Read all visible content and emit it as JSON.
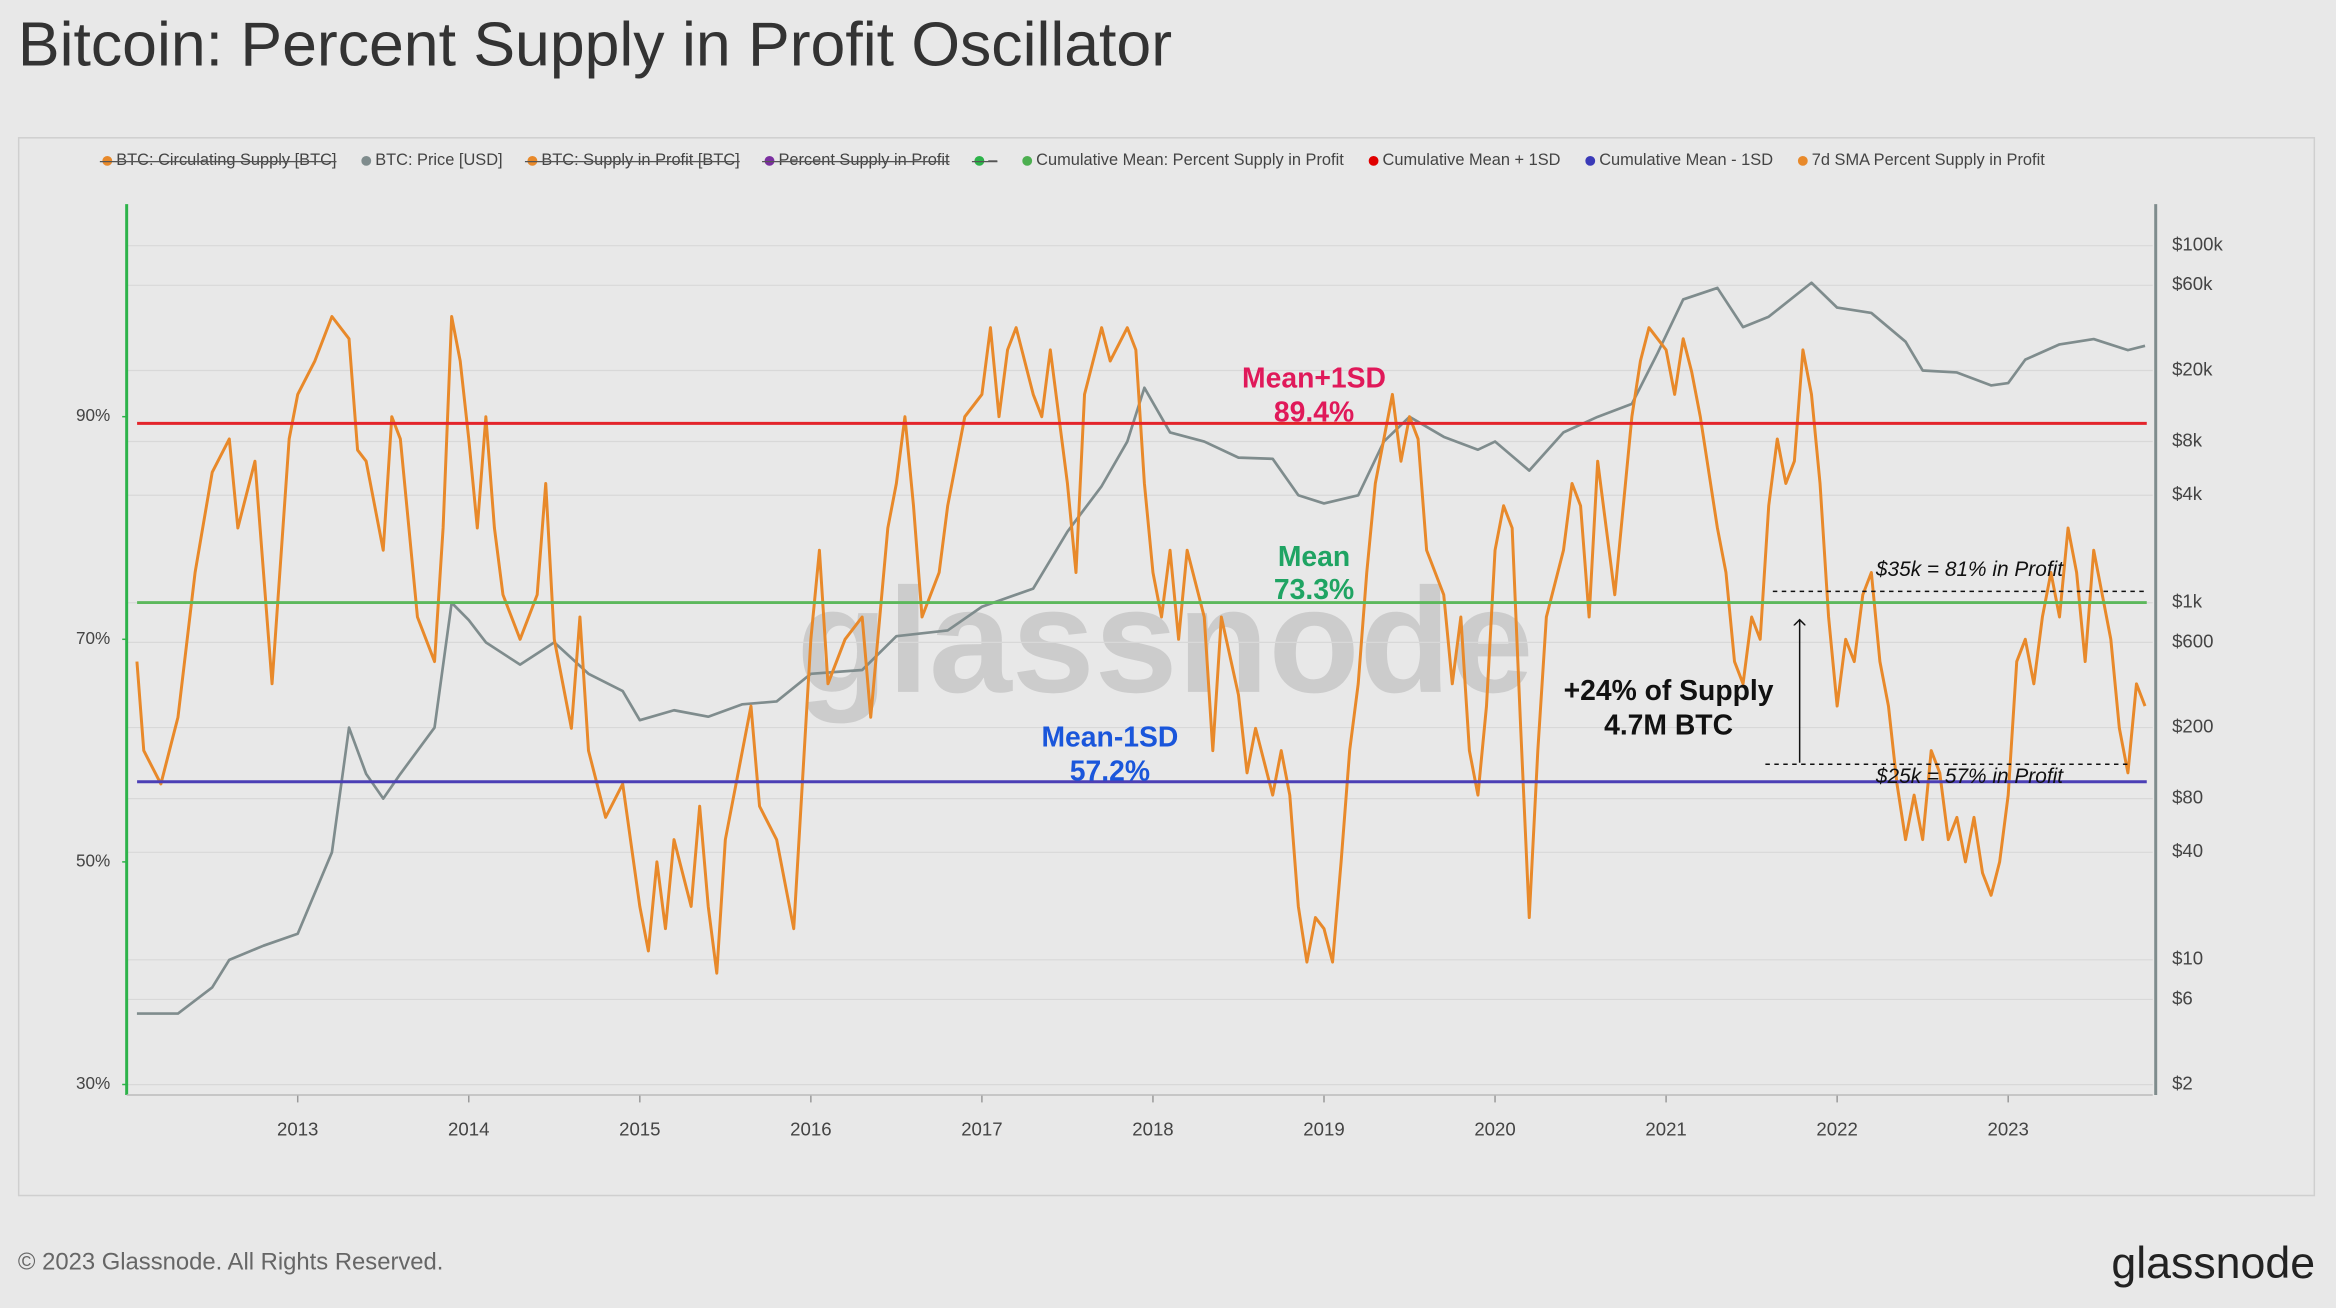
{
  "chart_data": {
    "type": "line",
    "title": "Bitcoin: Percent Supply in Profit Oscillator",
    "legend": [
      {
        "name": "BTC: Circulating Supply [BTC]",
        "color": "#e8892a",
        "struck": true
      },
      {
        "name": "BTC: Price [USD]",
        "color": "#7f8c8d",
        "struck": false
      },
      {
        "name": "BTC: Supply in Profit [BTC]",
        "color": "#e8892a",
        "struck": true
      },
      {
        "name": "Percent Supply in Profit",
        "color": "#7b2fa0",
        "struck": true
      },
      {
        "name": "–",
        "color": "#2db34a",
        "struck": true
      },
      {
        "name": "Cumulative Mean: Percent Supply in Profit",
        "color": "#4caf50",
        "struck": false
      },
      {
        "name": "Cumulative Mean + 1SD",
        "color": "#e00000",
        "struck": false
      },
      {
        "name": "Cumulative Mean - 1SD",
        "color": "#3a3ab8",
        "struck": false
      },
      {
        "name": "7d SMA Percent Supply in Profit",
        "color": "#e8892a",
        "struck": false
      }
    ],
    "xlim": [
      2012.0,
      2023.845
    ],
    "xticks": [
      2013,
      2014,
      2015,
      2016,
      2017,
      2018,
      2019,
      2020,
      2021,
      2022,
      2023
    ],
    "ylim": [
      29.06,
      109.1
    ],
    "yticks": [
      {
        "value": 30,
        "label": "30%"
      },
      {
        "value": 50,
        "label": "50%"
      },
      {
        "value": 70,
        "label": "70%"
      },
      {
        "value": 90,
        "label": "90%"
      }
    ],
    "y2lim": [
      1.75,
      171000
    ],
    "y2scale": "log",
    "y2ticks": [
      {
        "value": 2,
        "label": "$2"
      },
      {
        "value": 6,
        "label": "$6"
      },
      {
        "value": 10,
        "label": "$10"
      },
      {
        "value": 40,
        "label": "$40"
      },
      {
        "value": 80,
        "label": "$80"
      },
      {
        "value": 200,
        "label": "$200"
      },
      {
        "value": 600,
        "label": "$600"
      },
      {
        "value": 1000,
        "label": "$1k"
      },
      {
        "value": 4000,
        "label": "$4k"
      },
      {
        "value": 8000,
        "label": "$8k"
      },
      {
        "value": 20000,
        "label": "$20k"
      },
      {
        "value": 60000,
        "label": "$60k"
      },
      {
        "value": 100000,
        "label": "$100k"
      }
    ],
    "grid": true,
    "series": [
      {
        "name": "7d SMA Percent Supply in Profit",
        "color": "#e8892a",
        "axis": "y",
        "x": [
          2012.06,
          2012.1,
          2012.2,
          2012.3,
          2012.4,
          2012.5,
          2012.6,
          2012.65,
          2012.75,
          2012.85,
          2012.95,
          2013.0,
          2013.1,
          2013.2,
          2013.3,
          2013.35,
          2013.4,
          2013.5,
          2013.55,
          2013.6,
          2013.7,
          2013.8,
          2013.85,
          2013.9,
          2013.95,
          2014.0,
          2014.05,
          2014.1,
          2014.15,
          2014.2,
          2014.3,
          2014.4,
          2014.45,
          2014.5,
          2014.6,
          2014.65,
          2014.7,
          2014.8,
          2014.9,
          2015.0,
          2015.05,
          2015.1,
          2015.15,
          2015.2,
          2015.3,
          2015.35,
          2015.4,
          2015.45,
          2015.5,
          2015.6,
          2015.65,
          2015.7,
          2015.8,
          2015.9,
          2016.0,
          2016.05,
          2016.1,
          2016.2,
          2016.3,
          2016.35,
          2016.45,
          2016.5,
          2016.55,
          2016.6,
          2016.65,
          2016.75,
          2016.8,
          2016.9,
          2017.0,
          2017.05,
          2017.1,
          2017.15,
          2017.2,
          2017.3,
          2017.35,
          2017.4,
          2017.5,
          2017.55,
          2017.6,
          2017.7,
          2017.75,
          2017.85,
          2017.9,
          2017.95,
          2018.0,
          2018.05,
          2018.1,
          2018.15,
          2018.2,
          2018.3,
          2018.35,
          2018.4,
          2018.5,
          2018.55,
          2018.6,
          2018.7,
          2018.75,
          2018.8,
          2018.85,
          2018.9,
          2018.95,
          2019.0,
          2019.05,
          2019.1,
          2019.15,
          2019.2,
          2019.25,
          2019.3,
          2019.4,
          2019.45,
          2019.5,
          2019.55,
          2019.6,
          2019.7,
          2019.75,
          2019.8,
          2019.85,
          2019.9,
          2019.95,
          2020.0,
          2020.05,
          2020.1,
          2020.15,
          2020.2,
          2020.25,
          2020.3,
          2020.4,
          2020.45,
          2020.5,
          2020.55,
          2020.6,
          2020.65,
          2020.7,
          2020.8,
          2020.85,
          2020.9,
          2021.0,
          2021.05,
          2021.1,
          2021.15,
          2021.2,
          2021.3,
          2021.35,
          2021.4,
          2021.45,
          2021.5,
          2021.55,
          2021.6,
          2021.65,
          2021.7,
          2021.75,
          2021.8,
          2021.85,
          2021.9,
          2021.95,
          2022.0,
          2022.05,
          2022.1,
          2022.15,
          2022.2,
          2022.25,
          2022.3,
          2022.35,
          2022.4,
          2022.45,
          2022.5,
          2022.55,
          2022.6,
          2022.65,
          2022.7,
          2022.75,
          2022.8,
          2022.85,
          2022.9,
          2022.95,
          2023.0,
          2023.05,
          2023.1,
          2023.15,
          2023.2,
          2023.25,
          2023.3,
          2023.35,
          2023.4,
          2023.45,
          2023.5,
          2023.55,
          2023.6,
          2023.65,
          2023.7,
          2023.75,
          2023.8
        ],
        "values": [
          68,
          60,
          57,
          63,
          76,
          85,
          88,
          80,
          86,
          66,
          88,
          92,
          95,
          99,
          97,
          87,
          86,
          78,
          90,
          88,
          72,
          68,
          80,
          99,
          95,
          88,
          80,
          90,
          80,
          74,
          70,
          74,
          84,
          70,
          62,
          72,
          60,
          54,
          57,
          46,
          42,
          50,
          44,
          52,
          46,
          55,
          46,
          40,
          52,
          60,
          64,
          55,
          52,
          44,
          70,
          78,
          66,
          70,
          72,
          63,
          80,
          84,
          90,
          82,
          72,
          76,
          82,
          90,
          92,
          98,
          90,
          96,
          98,
          92,
          90,
          96,
          84,
          76,
          92,
          98,
          95,
          98,
          96,
          84,
          76,
          72,
          78,
          70,
          78,
          72,
          60,
          72,
          65,
          58,
          62,
          56,
          60,
          56,
          46,
          41,
          45,
          44,
          41,
          50,
          60,
          66,
          76,
          84,
          92,
          86,
          90,
          88,
          78,
          74,
          66,
          72,
          60,
          56,
          64,
          78,
          82,
          80,
          62,
          45,
          60,
          72,
          78,
          84,
          82,
          72,
          86,
          80,
          74,
          90,
          95,
          98,
          96,
          92,
          97,
          94,
          90,
          80,
          76,
          68,
          66,
          72,
          70,
          82,
          88,
          84,
          86,
          96,
          92,
          84,
          72,
          64,
          70,
          68,
          74,
          76,
          68,
          64,
          57,
          52,
          56,
          52,
          60,
          58,
          52,
          54,
          50,
          54,
          49,
          47,
          50,
          56,
          68,
          70,
          66,
          72,
          76,
          72,
          80,
          76,
          68,
          78,
          74,
          70,
          62,
          58,
          66,
          64
        ]
      },
      {
        "name": "BTC: Price [USD]",
        "color": "#7f8c8d",
        "axis": "y2",
        "x": [
          2012.06,
          2012.3,
          2012.5,
          2012.6,
          2012.8,
          2013.0,
          2013.2,
          2013.3,
          2013.4,
          2013.5,
          2013.6,
          2013.8,
          2013.9,
          2014.0,
          2014.1,
          2014.3,
          2014.5,
          2014.7,
          2014.9,
          2015.0,
          2015.2,
          2015.4,
          2015.6,
          2015.8,
          2016.0,
          2016.3,
          2016.5,
          2016.8,
          2017.0,
          2017.3,
          2017.5,
          2017.7,
          2017.85,
          2017.95,
          2018.1,
          2018.3,
          2018.5,
          2018.7,
          2018.85,
          2019.0,
          2019.2,
          2019.35,
          2019.5,
          2019.7,
          2019.9,
          2020.0,
          2020.2,
          2020.4,
          2020.6,
          2020.8,
          2020.95,
          2021.1,
          2021.3,
          2021.45,
          2021.6,
          2021.85,
          2022.0,
          2022.2,
          2022.4,
          2022.5,
          2022.7,
          2022.9,
          2023.0,
          2023.1,
          2023.3,
          2023.5,
          2023.7,
          2023.8
        ],
        "values": [
          5,
          5,
          7,
          10,
          12,
          14,
          40,
          200,
          110,
          80,
          110,
          200,
          1000,
          800,
          600,
          450,
          600,
          400,
          320,
          220,
          250,
          230,
          270,
          280,
          400,
          420,
          650,
          700,
          950,
          1200,
          2500,
          4500,
          8000,
          16000,
          9000,
          8000,
          6500,
          6400,
          4000,
          3600,
          4000,
          8000,
          11000,
          8500,
          7200,
          8000,
          5500,
          9000,
          11000,
          13000,
          25000,
          50000,
          58000,
          35000,
          40000,
          62000,
          45000,
          42000,
          29000,
          20000,
          19500,
          16500,
          17000,
          23000,
          28000,
          30000,
          26000,
          27500
        ]
      }
    ],
    "reference_lines": [
      {
        "name": "Mean+1SD",
        "value": 89.4,
        "value_label": "89.4%",
        "color": "#e3242b",
        "label_color": "#e0195a"
      },
      {
        "name": "Mean",
        "value": 73.3,
        "value_label": "73.3%",
        "color": "#5cb85c",
        "label_color": "#1fa463"
      },
      {
        "name": "Mean-1SD",
        "value": 57.2,
        "value_label": "57.2%",
        "color": "#4b3fb5",
        "label_color": "#1a56db"
      }
    ],
    "annotations": [
      "$35k = 81% in Profit",
      "$25k = 57% in Profit",
      "+24% of Supply",
      "4.7M BTC"
    ],
    "watermark": "glassnode",
    "copyright": "© 2023 Glassnode. All Rights Reserved.",
    "logo": "glassnode"
  }
}
